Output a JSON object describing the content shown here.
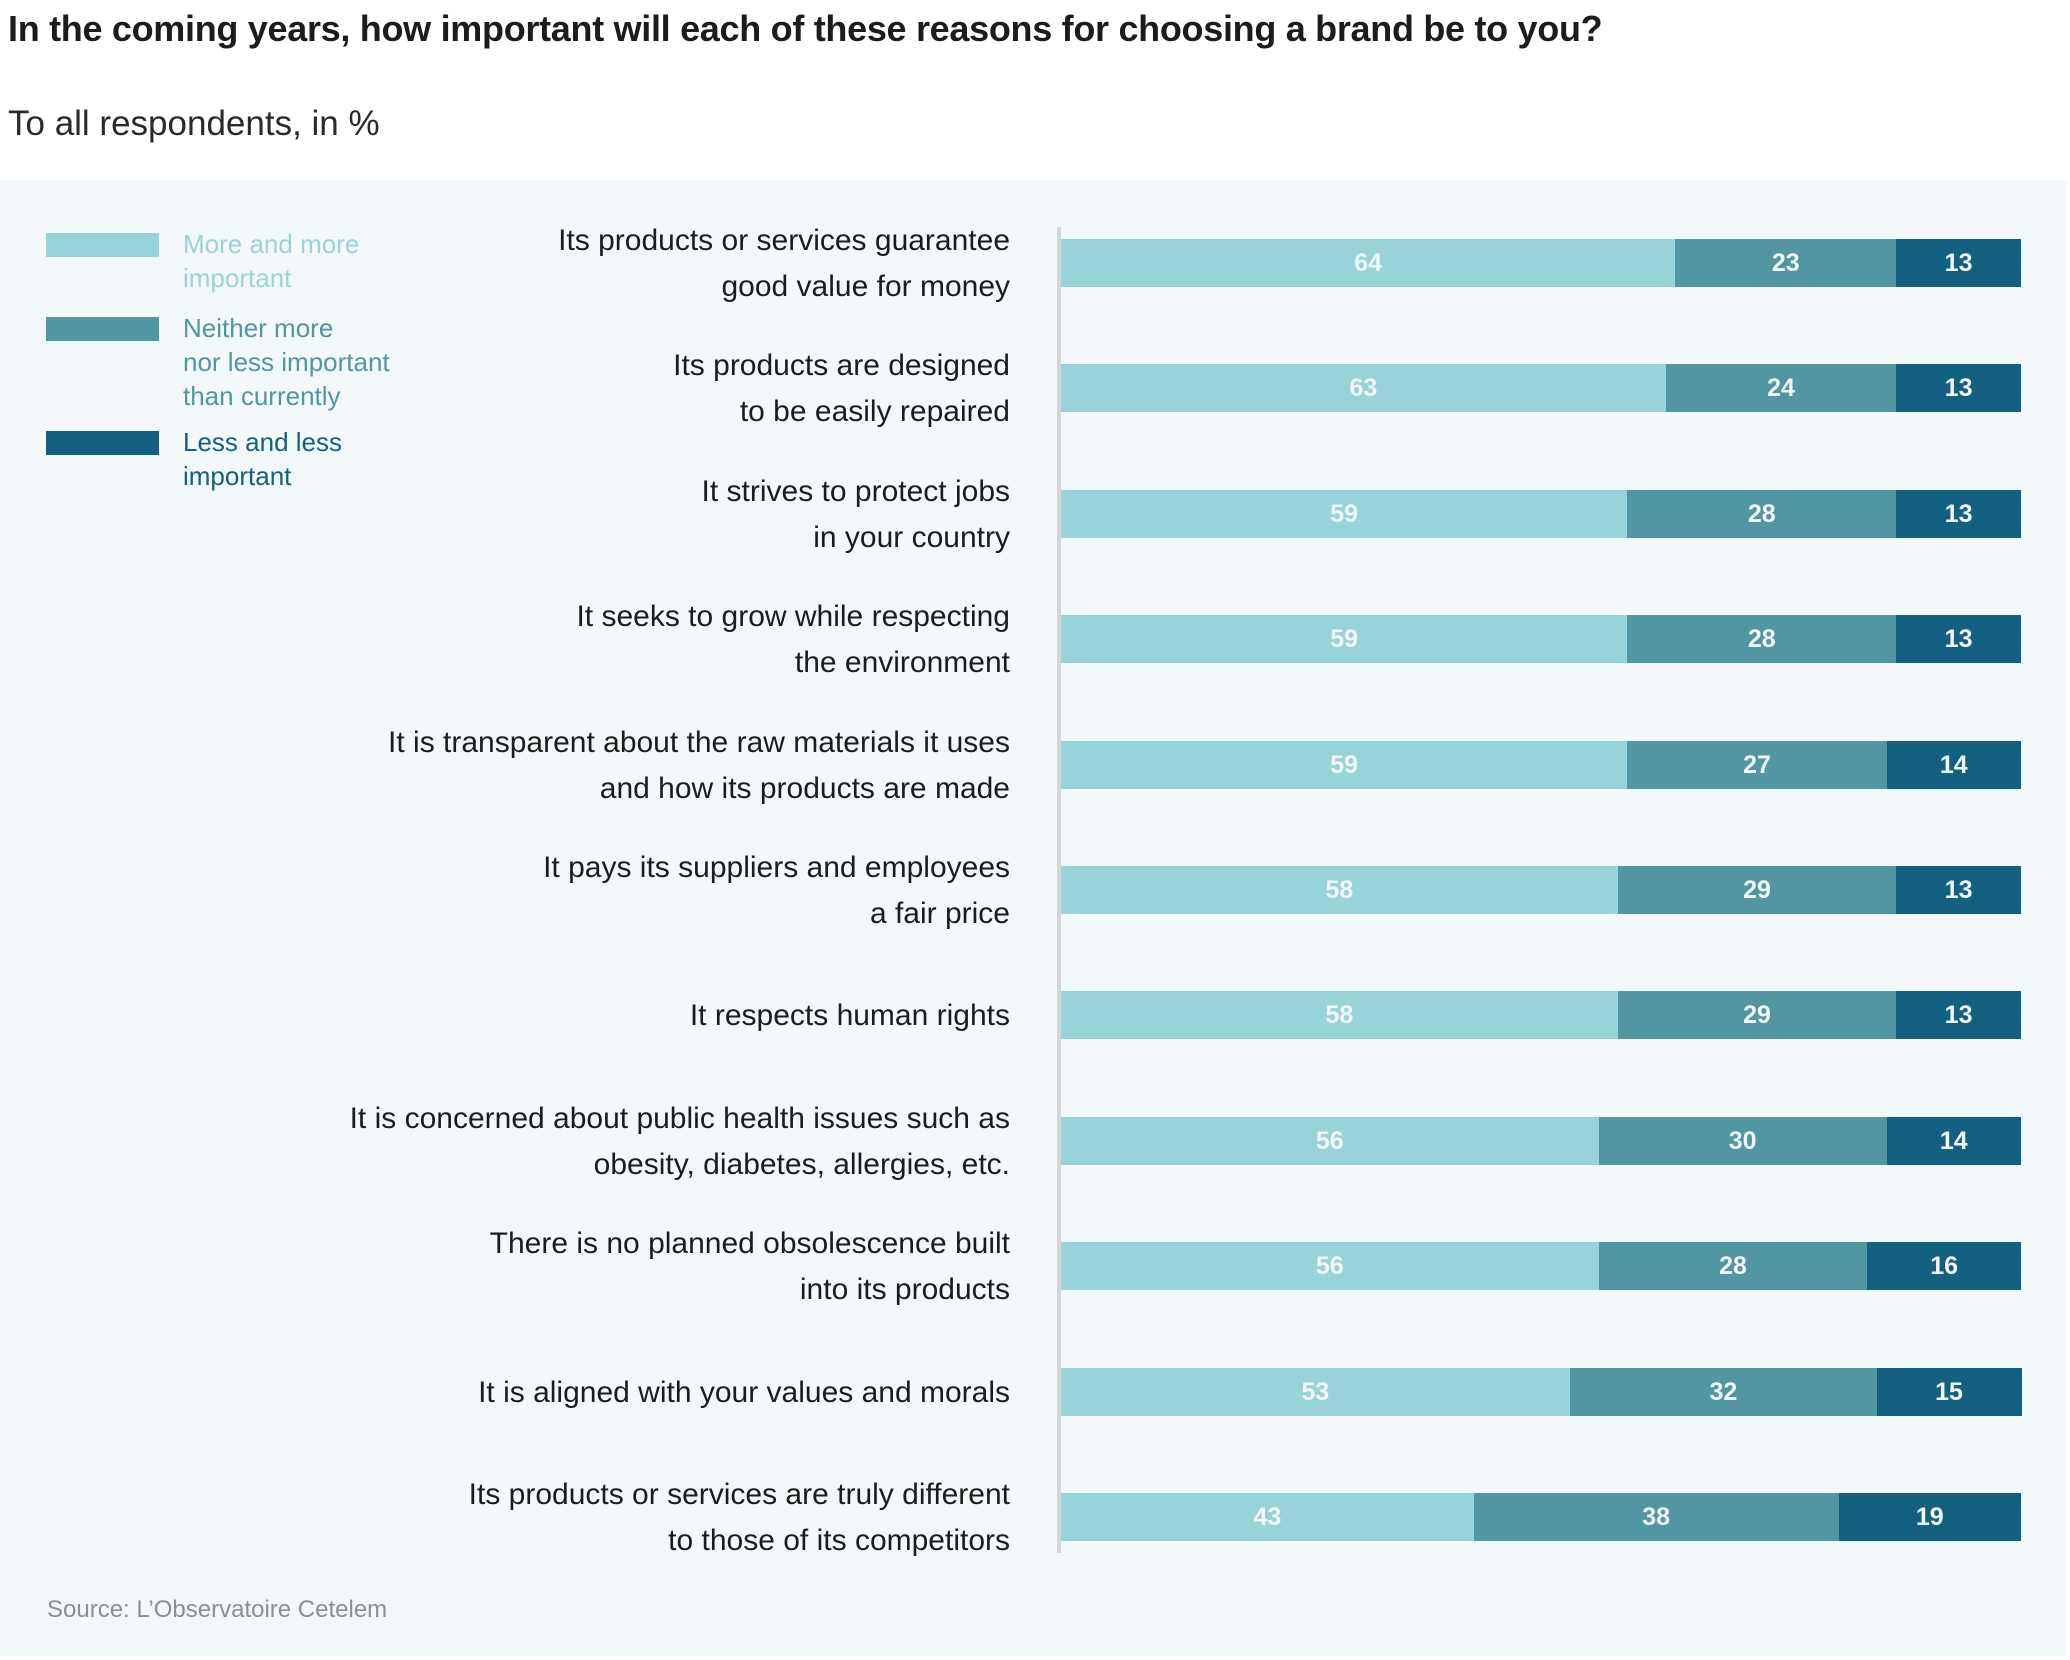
{
  "header": {
    "title": "In the coming years, how important will each of these reasons for choosing a brand be to you?",
    "subtitle": "To all respondents, in %"
  },
  "footer": {
    "source": "Source: L’Observatoire Cetelem"
  },
  "colors": {
    "more_important": "#99d3da",
    "neither": "#5196a2",
    "less_important": "#136080",
    "panel_bg": "#f3f8fa",
    "value_label": "#f2f7fa"
  },
  "chart_data": {
    "type": "bar",
    "orientation": "horizontal",
    "stacked": true,
    "title": "In the coming years, how important will each of these reasons for choosing a brand be to you?",
    "subtitle": "To all respondents, in %",
    "xlabel": "",
    "ylabel": "",
    "xlim": [
      0,
      100
    ],
    "grid": false,
    "legend_position": "top-left",
    "categories": [
      "Its products or services guarantee\ngood value for money",
      "Its products are designed\nto be easily repaired",
      "It strives to protect jobs\nin your country",
      "It seeks to grow while respecting\nthe environment",
      "It is transparent about the raw materials it uses\nand how its products are made",
      "It pays its suppliers and employees\na fair price",
      "It respects human rights",
      "It is concerned about public health issues such as\nobesity, diabetes, allergies, etc.",
      "There is no planned obsolescence built\ninto its products",
      "It is aligned with your values and morals",
      "Its products or services are truly different\nto those of its competitors"
    ],
    "series": [
      {
        "name": "More and more\nimportant",
        "color": "#99d3da",
        "values": [
          64,
          63,
          59,
          59,
          59,
          58,
          58,
          56,
          56,
          53,
          43
        ]
      },
      {
        "name": "Neither more\nnor less important\nthan currently",
        "color": "#5196a2",
        "values": [
          23,
          24,
          28,
          28,
          27,
          29,
          29,
          30,
          28,
          32,
          38
        ]
      },
      {
        "name": "Less and less\nimportant",
        "color": "#136080",
        "values": [
          13,
          13,
          13,
          13,
          14,
          13,
          13,
          14,
          16,
          15,
          19
        ]
      }
    ],
    "source": "Source: L’Observatoire Cetelem"
  }
}
